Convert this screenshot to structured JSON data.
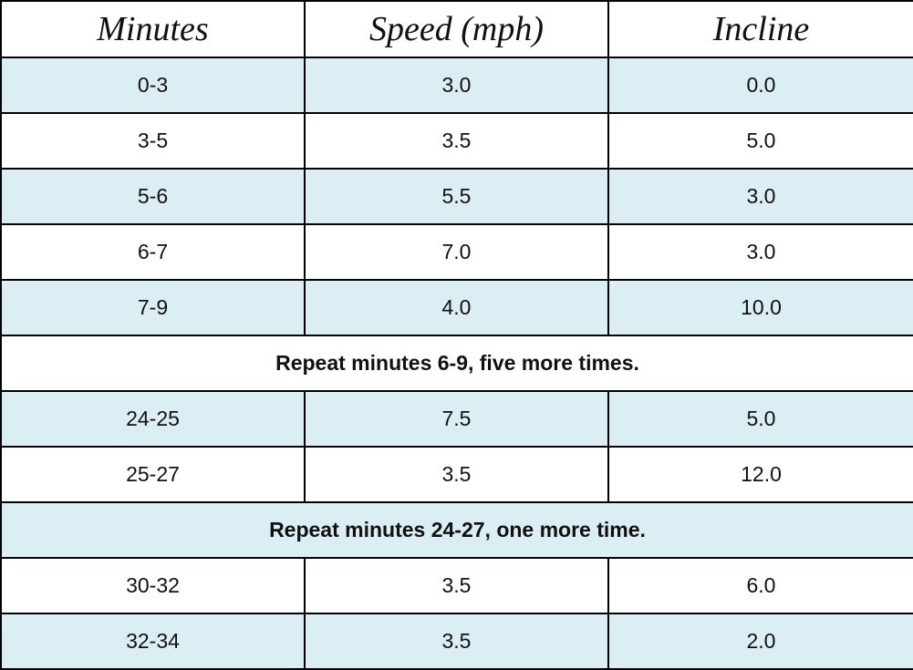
{
  "table": {
    "columns": [
      "Minutes",
      "Speed (mph)",
      "Incline"
    ],
    "rows": [
      [
        "0-3",
        "3.0",
        "0.0"
      ],
      [
        "3-5",
        "3.5",
        "5.0"
      ],
      [
        "5-6",
        "5.5",
        "3.0"
      ],
      [
        "6-7",
        "7.0",
        "3.0"
      ],
      [
        "7-9",
        "4.0",
        "10.0"
      ],
      "Repeat minutes 6-9, five more times.",
      [
        "24-25",
        "7.5",
        "5.0"
      ],
      [
        "25-27",
        "3.5",
        "12.0"
      ],
      "Repeat minutes 24-27, one more time.",
      [
        "30-32",
        "3.5",
        "6.0"
      ],
      [
        "32-34",
        "3.5",
        "2.0"
      ]
    ]
  }
}
